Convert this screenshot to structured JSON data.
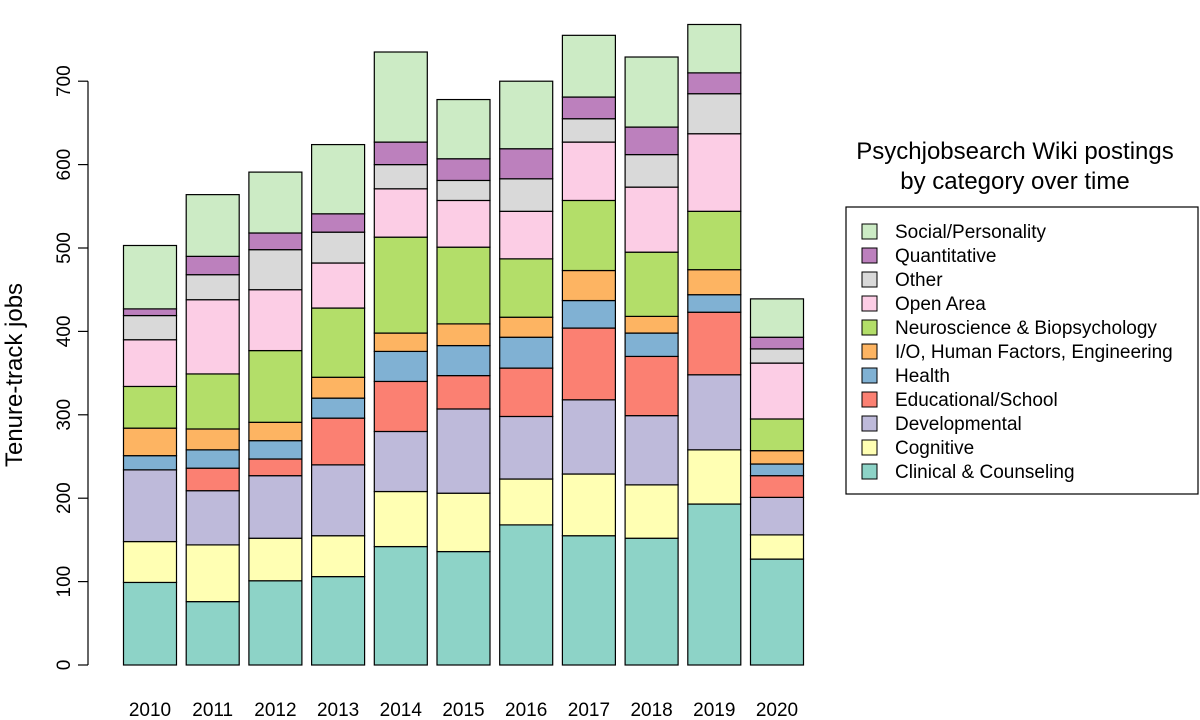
{
  "chart_data": {
    "type": "bar",
    "stacked": true,
    "title": "",
    "xlabel": "",
    "ylabel": "Tenure-track jobs",
    "ylim": [
      0,
      770
    ],
    "yticks": [
      0,
      100,
      200,
      300,
      400,
      500,
      600,
      700
    ],
    "categories": [
      "2010",
      "2011",
      "2012",
      "2013",
      "2014",
      "2015",
      "2016",
      "2017",
      "2018",
      "2019",
      "2020"
    ],
    "legend": {
      "title_lines": [
        "Psychjobsearch Wiki postings",
        "by category over time"
      ],
      "placement": "right"
    },
    "series": [
      {
        "name": "Clinical & Counseling",
        "color": "#8DD3C7",
        "values": [
          99,
          76,
          101,
          106,
          142,
          136,
          168,
          155,
          152,
          193,
          127
        ]
      },
      {
        "name": "Cognitive",
        "color": "#FFFFB3",
        "values": [
          49,
          68,
          51,
          49,
          66,
          70,
          55,
          74,
          64,
          65,
          29
        ]
      },
      {
        "name": "Developmental",
        "color": "#BEBADA",
        "values": [
          86,
          65,
          75,
          85,
          72,
          101,
          75,
          89,
          83,
          90,
          45
        ]
      },
      {
        "name": "Educational/School",
        "color": "#FB8072",
        "values": [
          0,
          27,
          20,
          56,
          60,
          40,
          58,
          86,
          71,
          75,
          26
        ]
      },
      {
        "name": "Health",
        "color": "#80B1D3",
        "values": [
          17,
          22,
          22,
          24,
          36,
          36,
          37,
          33,
          28,
          21,
          14
        ]
      },
      {
        "name": "I/O, Human Factors, Engineering",
        "color": "#FDB462",
        "values": [
          33,
          25,
          22,
          25,
          22,
          26,
          24,
          36,
          20,
          30,
          16
        ]
      },
      {
        "name": "Neuroscience & Biopsychology",
        "color": "#B3DE69",
        "values": [
          50,
          66,
          86,
          83,
          115,
          92,
          70,
          84,
          77,
          70,
          38
        ]
      },
      {
        "name": "Open Area",
        "color": "#FCCDE5",
        "values": [
          56,
          89,
          73,
          54,
          58,
          56,
          57,
          70,
          78,
          93,
          67
        ]
      },
      {
        "name": "Other",
        "color": "#D9D9D9",
        "values": [
          29,
          30,
          48,
          37,
          29,
          24,
          39,
          28,
          39,
          48,
          17
        ]
      },
      {
        "name": "Quantitative",
        "color": "#BC80BD",
        "values": [
          8,
          22,
          20,
          22,
          27,
          26,
          36,
          26,
          33,
          25,
          14
        ]
      },
      {
        "name": "Social/Personality",
        "color": "#CCEBC5",
        "values": [
          76,
          74,
          73,
          83,
          108,
          71,
          81,
          74,
          84,
          58,
          46
        ]
      }
    ]
  }
}
